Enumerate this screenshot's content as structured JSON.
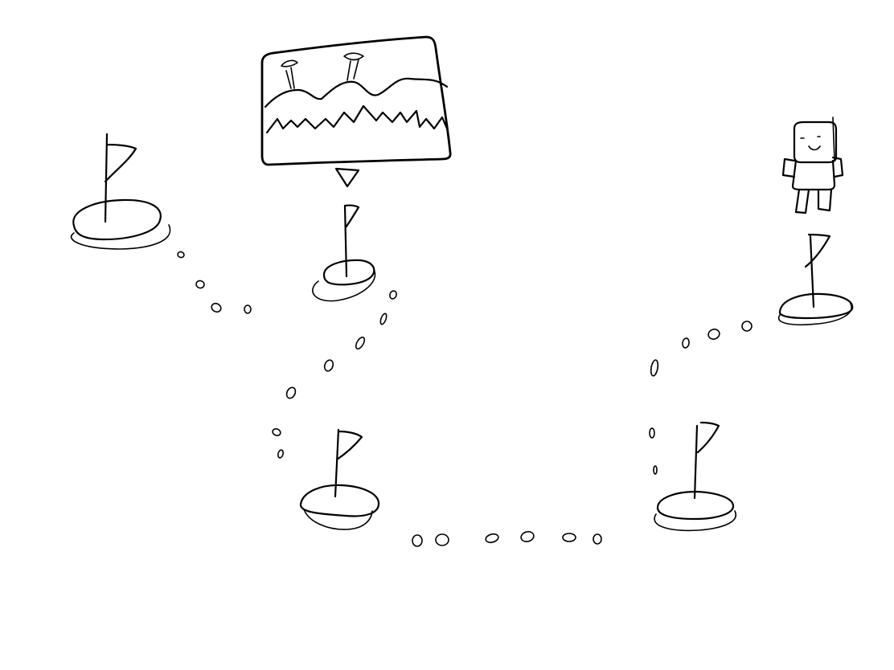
{
  "map": {
    "stops": [
      {
        "id": "stop-1",
        "flag": true,
        "completed": false
      },
      {
        "id": "stop-2",
        "flag": true,
        "current": true
      },
      {
        "id": "stop-3",
        "flag": true,
        "completed": false
      },
      {
        "id": "stop-4",
        "flag": true,
        "completed": false
      },
      {
        "id": "stop-5",
        "flag": true,
        "completed": false
      }
    ],
    "player": {
      "icon": "player-character-icon",
      "at": "stop-5"
    },
    "preview": {
      "icon": "landscape-preview-icon",
      "pointer": "down-triangle-icon",
      "for": "stop-2"
    },
    "ink_color": "#000000",
    "background_color": "#ffffff"
  }
}
